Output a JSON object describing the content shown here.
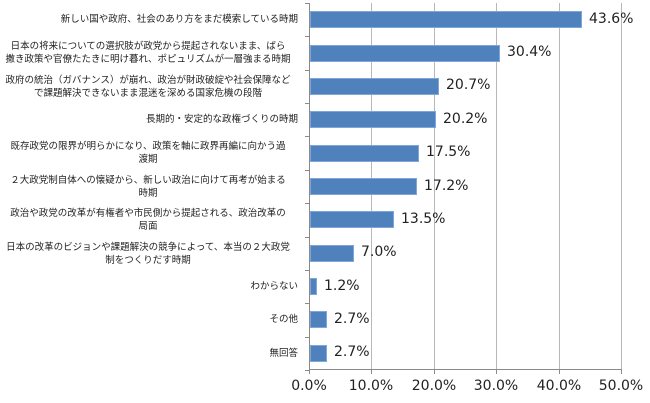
{
  "chart_data": {
    "type": "bar",
    "orientation": "horizontal",
    "title": "",
    "xlabel": "",
    "ylabel": "",
    "xlim": [
      0,
      50
    ],
    "x_ticks": [
      "0.0%",
      "10.0%",
      "20.0%",
      "30.0%",
      "40.0%",
      "50.0%"
    ],
    "grid": true,
    "legend": null,
    "bar_color": "#4f81bd",
    "categories": [
      "新しい国や政府、社会のあり方をまだ模索している時期",
      "日本の将来についての選択肢が政党から提起されないまま、ばら撒き政策や官僚たたきに明け暮れ、ポピュリズムが一層強まる時期",
      "政府の統治（ガバナンス）が崩れ、政治が財政破綻や社会保障などで課題解決できないまま混迷を深める国家危機の段階",
      "長期的・安定的な政権づくりの時期",
      "既存政党の限界が明らかになり、政策を軸に政界再編に向かう過渡期",
      "２大政党制自体への懐疑から、新しい政治に向けて再考が始まる時期",
      "政治や政党の改革が有権者や市民側から提起される、政治改革の局面",
      "日本の改革のビジョンや課題解決の競争によって、本当の２大政党制をつくりだす時期",
      "わからない",
      "その他",
      "無回答"
    ],
    "values": [
      43.6,
      30.4,
      20.7,
      20.2,
      17.5,
      17.2,
      13.5,
      7.0,
      1.2,
      2.7,
      2.7
    ],
    "value_labels": [
      "43.6%",
      "30.4%",
      "20.7%",
      "20.2%",
      "17.5%",
      "17.2%",
      "13.5%",
      "7.0%",
      "1.2%",
      "2.7%",
      "2.7%"
    ]
  },
  "labels": {
    "c0": [
      "新しい国や政府、社会のあり方をまだ模索している時期"
    ],
    "c1": [
      "日本の将来についての選択肢が政党から提起されないまま、ばら",
      "撒き政策や官僚たたきに明け暮れ、ポピュリズムが一層強まる時期"
    ],
    "c2": [
      "政府の統治（ガバナンス）が崩れ、政治が財政破綻や社会保障など",
      "で課題解決できないまま混迷を深める国家危機の段階"
    ],
    "c3": [
      "長期的・安定的な政権づくりの時期"
    ],
    "c4": [
      "既存政党の限界が明らかになり、政策を軸に政界再編に向かう過",
      "渡期"
    ],
    "c5": [
      "２大政党制自体への懐疑から、新しい政治に向けて再考が始まる",
      "時期"
    ],
    "c6": [
      "政治や政党の改革が有権者や市民側から提起される、政治改革の",
      "局面"
    ],
    "c7": [
      "日本の改革のビジョンや課題解決の競争によって、本当の２大政党",
      "制をつくりだす時期"
    ],
    "c8": [
      "わからない"
    ],
    "c9": [
      "その他"
    ],
    "c10": [
      "無回答"
    ]
  }
}
